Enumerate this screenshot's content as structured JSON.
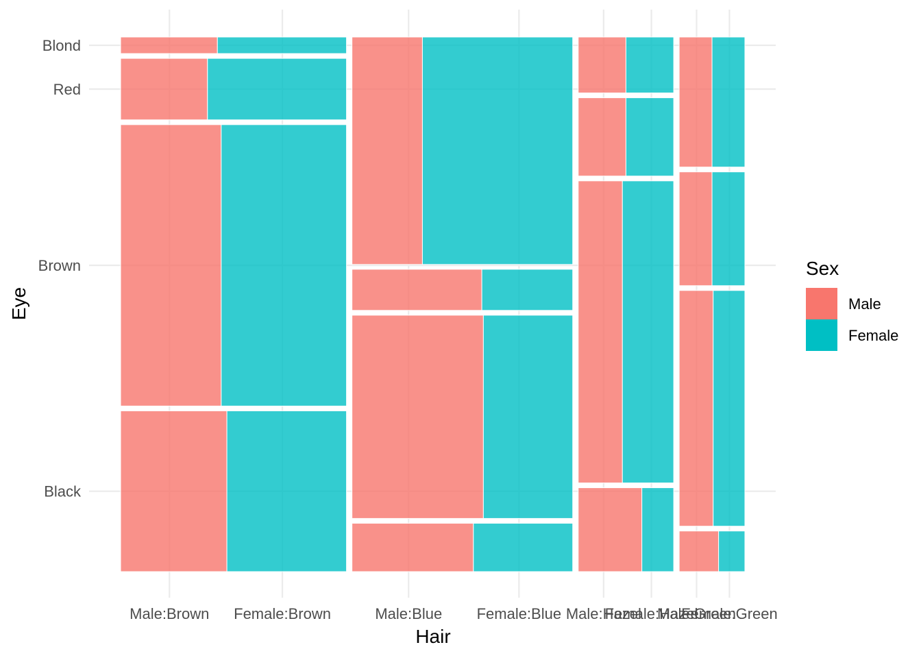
{
  "chart_data": {
    "type": "mosaic",
    "xlabel": "Hair",
    "ylabel": "Eye",
    "grid": true,
    "legend": {
      "title": "Sex",
      "position": "right",
      "entries": [
        {
          "name": "Male",
          "color": "#F8766D"
        },
        {
          "name": "Female",
          "color": "#00BFC4"
        }
      ]
    },
    "x_tick_labels": [
      "Male:Brown",
      "Female:Brown",
      "Male:Blue",
      "Female:Blue",
      "Male:Hazel",
      "Female:Hazel",
      "Male:Green",
      "Female:Green"
    ],
    "y_tick_labels": [
      "Blond",
      "Red",
      "Brown",
      "Black"
    ],
    "eye_order": [
      "Brown",
      "Blue",
      "Hazel",
      "Green"
    ],
    "hair_order_bottom_to_top": [
      "Black",
      "Brown",
      "Red",
      "Blond"
    ],
    "counts": {
      "Brown": {
        "Black": {
          "Male": 32,
          "Female": 36
        },
        "Brown": {
          "Male": 53,
          "Female": 66
        },
        "Red": {
          "Male": 10,
          "Female": 16
        },
        "Blond": {
          "Male": 3,
          "Female": 4
        }
      },
      "Blue": {
        "Black": {
          "Male": 11,
          "Female": 9
        },
        "Brown": {
          "Male": 50,
          "Female": 34
        },
        "Red": {
          "Male": 10,
          "Female": 7
        },
        "Blond": {
          "Male": 30,
          "Female": 64
        }
      },
      "Hazel": {
        "Black": {
          "Male": 10,
          "Female": 5
        },
        "Brown": {
          "Male": 25,
          "Female": 29
        },
        "Red": {
          "Male": 7,
          "Female": 7
        },
        "Blond": {
          "Male": 5,
          "Female": 5
        }
      },
      "Green": {
        "Black": {
          "Male": 3,
          "Female": 2
        },
        "Brown": {
          "Male": 15,
          "Female": 14
        },
        "Red": {
          "Male": 7,
          "Female": 7
        },
        "Blond": {
          "Male": 8,
          "Female": 8
        }
      }
    }
  }
}
